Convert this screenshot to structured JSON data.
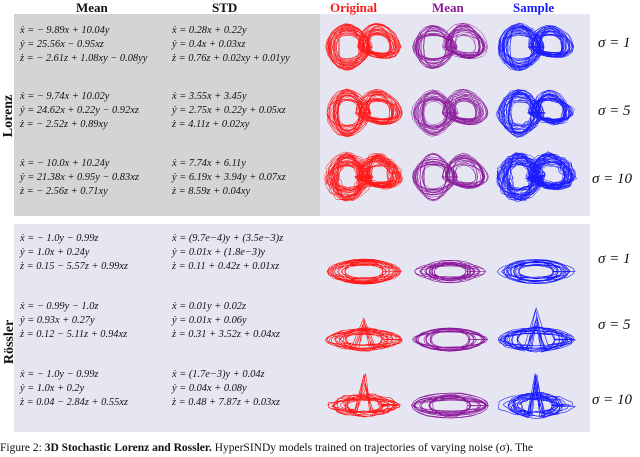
{
  "headers": {
    "mean": "Mean",
    "std": "STD",
    "original": "Original",
    "mean_plot": "Mean",
    "sample": "Sample"
  },
  "colors": {
    "original": "#ff1a1a",
    "mean": "#8b1a9b",
    "sample": "#1a1aff",
    "lorenz_bg": "#d4d4d4",
    "plot_bg": "#e6e6f2"
  },
  "lorenz": {
    "label": "Lorenz",
    "rows": [
      {
        "sigma": "σ = 1",
        "mean": [
          "ẋ = − 9.89x + 10.04y",
          "ẏ = 25.56x − 0.95xz",
          "ż = − 2.61z + 1.08xy − 0.08yy"
        ],
        "std": [
          "ẋ = 0.28x + 0.22y",
          "ẏ = 0.4x + 0.03xz",
          "ż = 0.76z + 0.02xy + 0.01yy"
        ]
      },
      {
        "sigma": "σ = 5",
        "mean": [
          "ẋ = − 9.74x + 10.02y",
          "ẏ = 24.62x + 0.22y − 0.92xz",
          "ż = − 2.52z + 0.89xy"
        ],
        "std": [
          "ẋ = 3.55x + 3.45y",
          "ẏ = 2.75x + 0.22y + 0.05xz",
          "ż = 4.11z + 0.02xy"
        ]
      },
      {
        "sigma": "σ = 10",
        "mean": [
          "ẋ = − 10.0x + 10.24y",
          "ẏ = 21.38x + 0.95y − 0.83xz",
          "ż = − 2.56z + 0.71xy"
        ],
        "std": [
          "ẋ = 7.74x + 6.11y",
          "ẏ = 6.19x + 3.94y + 0.07xz",
          "ż = 8.59z + 0.04xy"
        ]
      }
    ]
  },
  "rossler": {
    "label": "Rössler",
    "rows": [
      {
        "sigma": "σ = 1",
        "mean": [
          "ẋ = − 1.0y − 0.99z",
          "ẏ = 1.0x + 0.24y",
          "ż = 0.15 − 5.57z + 0.99xz"
        ],
        "std": [
          "ẋ = (9.7e−4)y + (3.5e−3)z",
          "ẏ = 0.01x + (1.8e−3)y",
          "ż = 0.11 + 0.42z + 0.01xz"
        ]
      },
      {
        "sigma": "σ = 5",
        "mean": [
          "ẋ = − 0.99y − 1.0z",
          "ẏ = 0.93x + 0.27y",
          "ż = 0.12 − 5.11z + 0.94xz"
        ],
        "std": [
          "ẋ = 0.01y + 0.02z",
          "ẏ = 0.01x + 0.06y",
          "ż = 0.31 + 3.52z + 0.04xz"
        ]
      },
      {
        "sigma": "σ = 10",
        "mean": [
          "ẋ = − 1.0y − 0.99z",
          "ẏ = 1.0x + 0.2y",
          "ż = 0.04 − 2.84z + 0.55xz"
        ],
        "std": [
          "ẋ = (1.7e−3)y + 0.04z",
          "ẏ = 0.04x + 0.08y",
          "ż = 0.48 + 7.87z + 0.03xz"
        ]
      }
    ]
  },
  "caption": {
    "prefix": "Figure 2: ",
    "bold": "3D Stochastic Lorenz and Rossler.",
    "rest": " HyperSINDy models trained on trajectories of varying noise (σ). The"
  }
}
